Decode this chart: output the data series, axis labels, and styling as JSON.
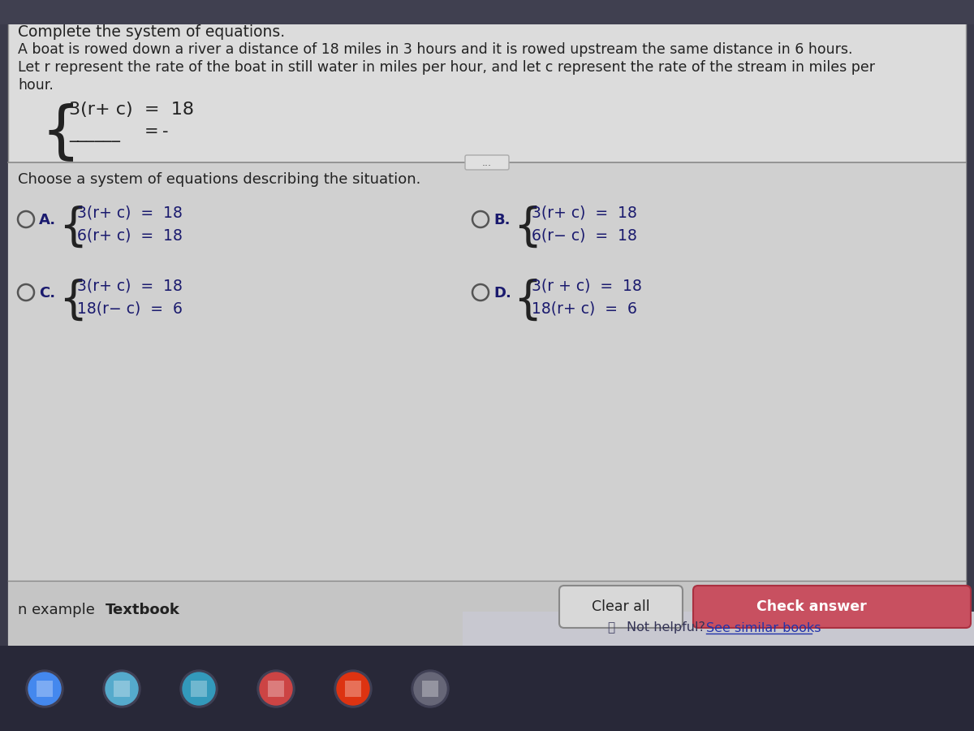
{
  "bg_outer": "#3a3a4a",
  "bg_main": "#d4d4d4",
  "bg_top": "#dcdcdc",
  "bg_bottom_bar": "#c8c8c8",
  "bg_footer": "#c0c0cc",
  "bg_taskbar": "#2a2a3a",
  "title": "Complete the system of equations.",
  "problem_line1": "A boat is rowed down a river a distance of 18 miles in 3 hours and it is rowed upstream the same distance in 6 hours.",
  "problem_line2": "Let r represent the rate of the boat in still water in miles per hour, and let c represent the rate of the stream in miles per",
  "problem_line3": "hour.",
  "given_eq1": "3(r+ c)  =  18",
  "given_eq2_blank": "______",
  "given_eq2_eq": "=",
  "given_eq2_dash": "-",
  "choose_text": "Choose a system of equations describing the situation.",
  "opt_A_eq1": "3(r+ c)  =  18",
  "opt_A_eq2": "6(r+ c)  =  18",
  "opt_B_eq1": "3(r+ c)  =  18",
  "opt_B_eq2": "6(r− c)  =  18",
  "opt_C_eq1": "3(r+ c)  =  18",
  "opt_C_eq2": "18(r− c)  =  6",
  "opt_D_eq1": "3(r + c)  =  18",
  "opt_D_eq2": "18(r+ c)  =  6",
  "bottom_left1": "n example",
  "bottom_left2": "Textbook",
  "btn_clear": "Clear all",
  "footer_text": "Not helpful?",
  "footer_link": "See similar books",
  "text_color": "#222222",
  "eq_color": "#1a1a6e",
  "label_color": "#1a1a6e"
}
